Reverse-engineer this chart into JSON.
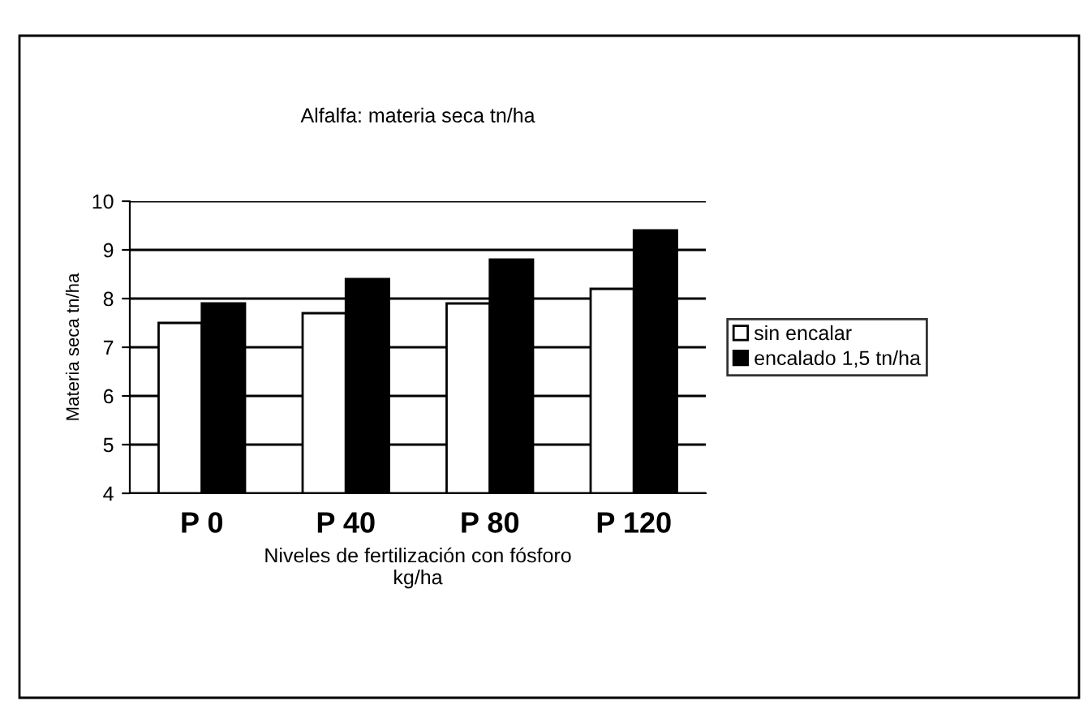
{
  "chart_data": {
    "type": "bar",
    "title": "Alfalfa: materia seca tn/ha",
    "xlabel": "Niveles de fertilización con fósforo\nkg/ha",
    "ylabel": "Materia seca tn/ha",
    "categories": [
      "P 0",
      "P 40",
      "P 80",
      "P 120"
    ],
    "series": [
      {
        "name": "sin encalar",
        "color": "#ffffff",
        "values": [
          7.5,
          7.7,
          7.9,
          8.2
        ]
      },
      {
        "name": "encalado 1,5 tn/ha",
        "color": "#000000",
        "values": [
          7.9,
          8.4,
          8.8,
          9.4
        ]
      }
    ],
    "ylim": [
      4,
      10
    ],
    "yticks": [
      4,
      5,
      6,
      7,
      8,
      9,
      10
    ],
    "grid": "y",
    "legend": "right"
  }
}
